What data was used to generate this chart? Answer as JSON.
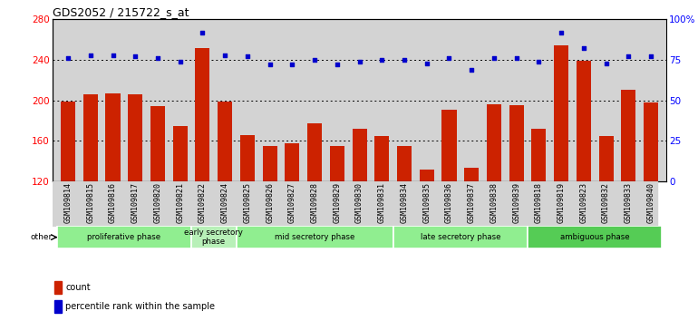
{
  "title": "GDS2052 / 215722_s_at",
  "samples": [
    "GSM109814",
    "GSM109815",
    "GSM109816",
    "GSM109817",
    "GSM109820",
    "GSM109821",
    "GSM109822",
    "GSM109824",
    "GSM109825",
    "GSM109826",
    "GSM109827",
    "GSM109828",
    "GSM109829",
    "GSM109830",
    "GSM109831",
    "GSM109834",
    "GSM109835",
    "GSM109836",
    "GSM109837",
    "GSM109838",
    "GSM109839",
    "GSM109818",
    "GSM109819",
    "GSM109823",
    "GSM109832",
    "GSM109833",
    "GSM109840"
  ],
  "counts": [
    199,
    206,
    207,
    206,
    194,
    175,
    252,
    199,
    166,
    155,
    158,
    177,
    155,
    172,
    165,
    155,
    132,
    191,
    133,
    196,
    195,
    172,
    254,
    239,
    165,
    210,
    198
  ],
  "percentiles": [
    76,
    78,
    78,
    77,
    76,
    74,
    92,
    78,
    77,
    72,
    72,
    75,
    72,
    74,
    75,
    75,
    73,
    76,
    69,
    76,
    76,
    74,
    92,
    82,
    73,
    77,
    77
  ],
  "phase_groups": [
    {
      "label": "proliferative phase",
      "start": 0,
      "end": 6,
      "color": "#90EE90"
    },
    {
      "label": "early secretory\nphase",
      "start": 6,
      "end": 8,
      "color": "#b8f0b8"
    },
    {
      "label": "mid secretory phase",
      "start": 8,
      "end": 15,
      "color": "#90EE90"
    },
    {
      "label": "late secretory phase",
      "start": 15,
      "end": 21,
      "color": "#90EE90"
    },
    {
      "label": "ambiguous phase",
      "start": 21,
      "end": 27,
      "color": "#55CC55"
    }
  ],
  "ylim_left": [
    120,
    280
  ],
  "ylim_right": [
    0,
    100
  ],
  "bar_color": "#CC2200",
  "dot_color": "#0000CC",
  "bg_color": "#D3D3D3",
  "title_fontsize": 9,
  "tick_fontsize": 6,
  "label_fontsize": 7
}
